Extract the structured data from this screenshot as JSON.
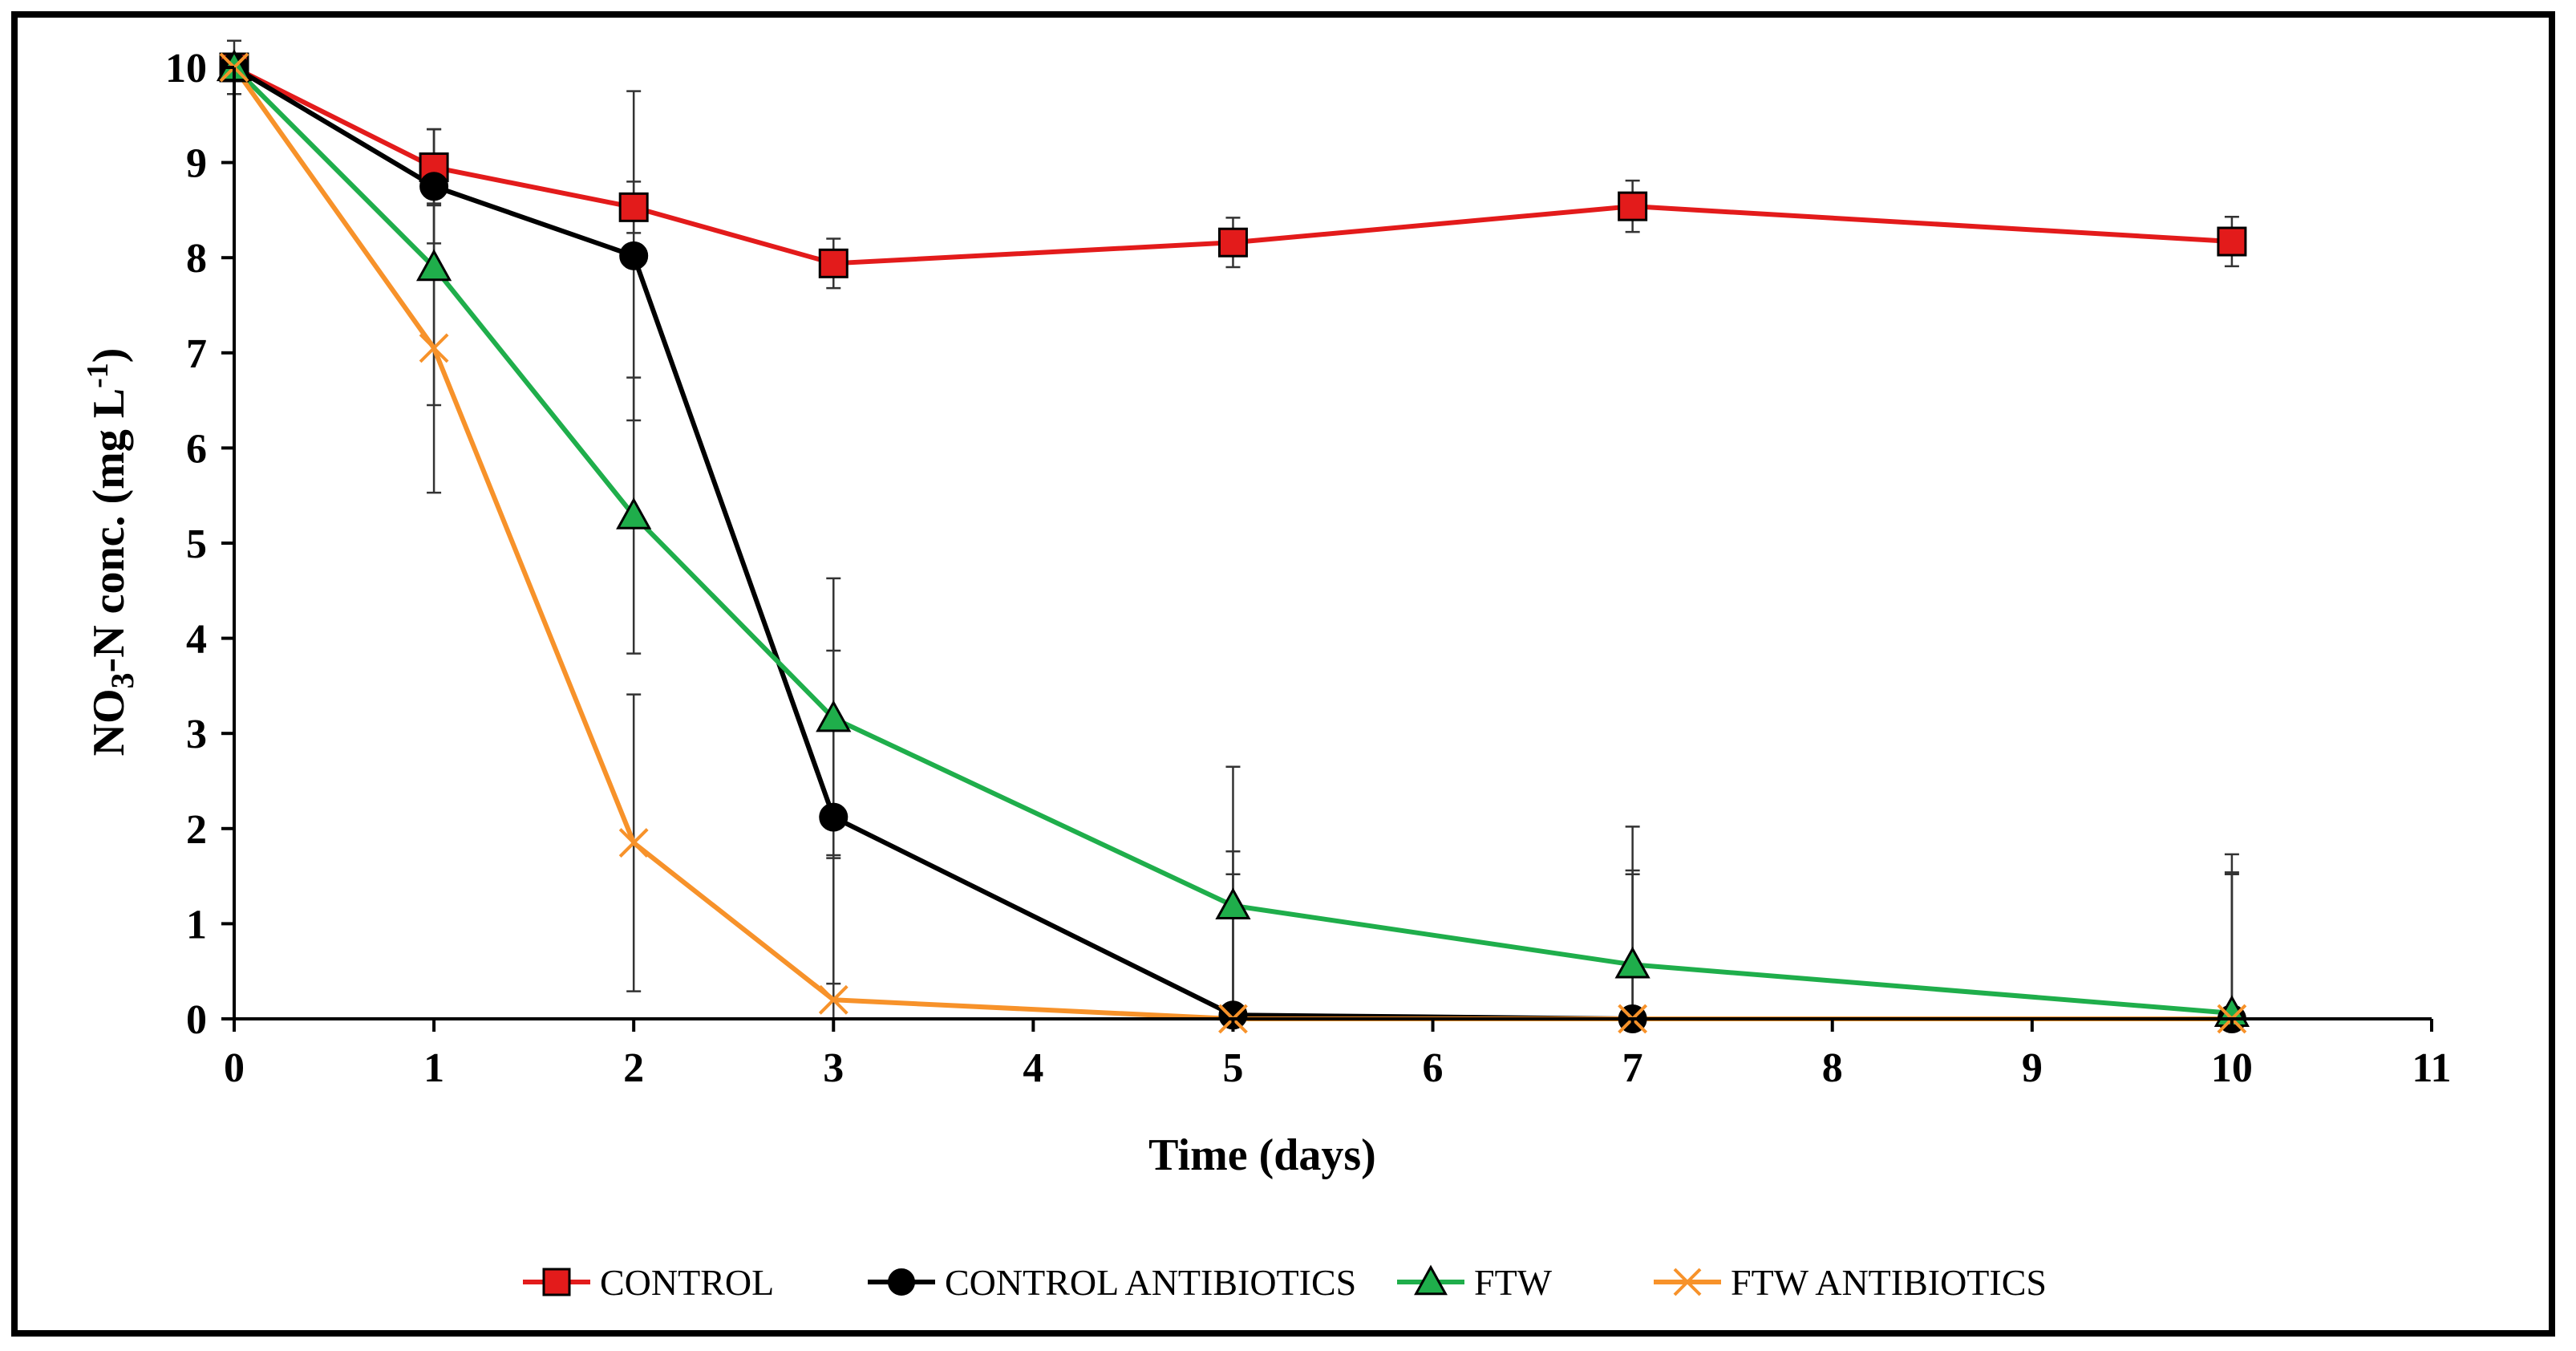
{
  "chart_data": {
    "type": "line",
    "title": "",
    "xlabel": "Time (days)",
    "ylabel_parts": {
      "main": "NO",
      "sub": "3",
      "mid": "-N conc. (mg L",
      "sup": "-1",
      "end": ")"
    },
    "xlim": [
      0,
      11
    ],
    "ylim": [
      0,
      10
    ],
    "xticks": [
      0,
      1,
      2,
      3,
      4,
      5,
      6,
      7,
      8,
      9,
      10,
      11
    ],
    "yticks": [
      0,
      1,
      2,
      3,
      4,
      5,
      6,
      7,
      8,
      9,
      10
    ],
    "grid": false,
    "legend_position": "bottom",
    "x": [
      0,
      1,
      2,
      3,
      5,
      7,
      10
    ],
    "series": [
      {
        "name": "CONTROL",
        "color": "#e31b1b",
        "marker": "square",
        "values": [
          10,
          8.95,
          8.53,
          7.94,
          8.16,
          8.54,
          8.17
        ],
        "errors": [
          0,
          0.4,
          0.27,
          0.26,
          0.26,
          0.27,
          0.26
        ]
      },
      {
        "name": "CONTROL ANTIBIOTICS",
        "color": "#000000",
        "marker": "circle",
        "values": [
          10,
          8.75,
          8.02,
          2.12,
          0.04,
          0,
          0
        ],
        "errors": [
          0.28,
          0.6,
          1.73,
          1.75,
          1.72,
          1.56,
          1.54
        ]
      },
      {
        "name": "FTW",
        "color": "#1fae4b",
        "marker": "triangle",
        "values": [
          10,
          7.9,
          5.29,
          3.16,
          1.19,
          0.57,
          0.06
        ],
        "errors": [
          0,
          1.45,
          1.45,
          1.47,
          1.46,
          1.45,
          1.67
        ]
      },
      {
        "name": "FTW ANTIBIOTICS",
        "color": "#f7922a",
        "marker": "x",
        "values": [
          10,
          7.05,
          1.85,
          0.2,
          0,
          0,
          0
        ],
        "errors": [
          0,
          1.52,
          1.56,
          1.52,
          1.52,
          1.52,
          1.52
        ]
      }
    ]
  }
}
